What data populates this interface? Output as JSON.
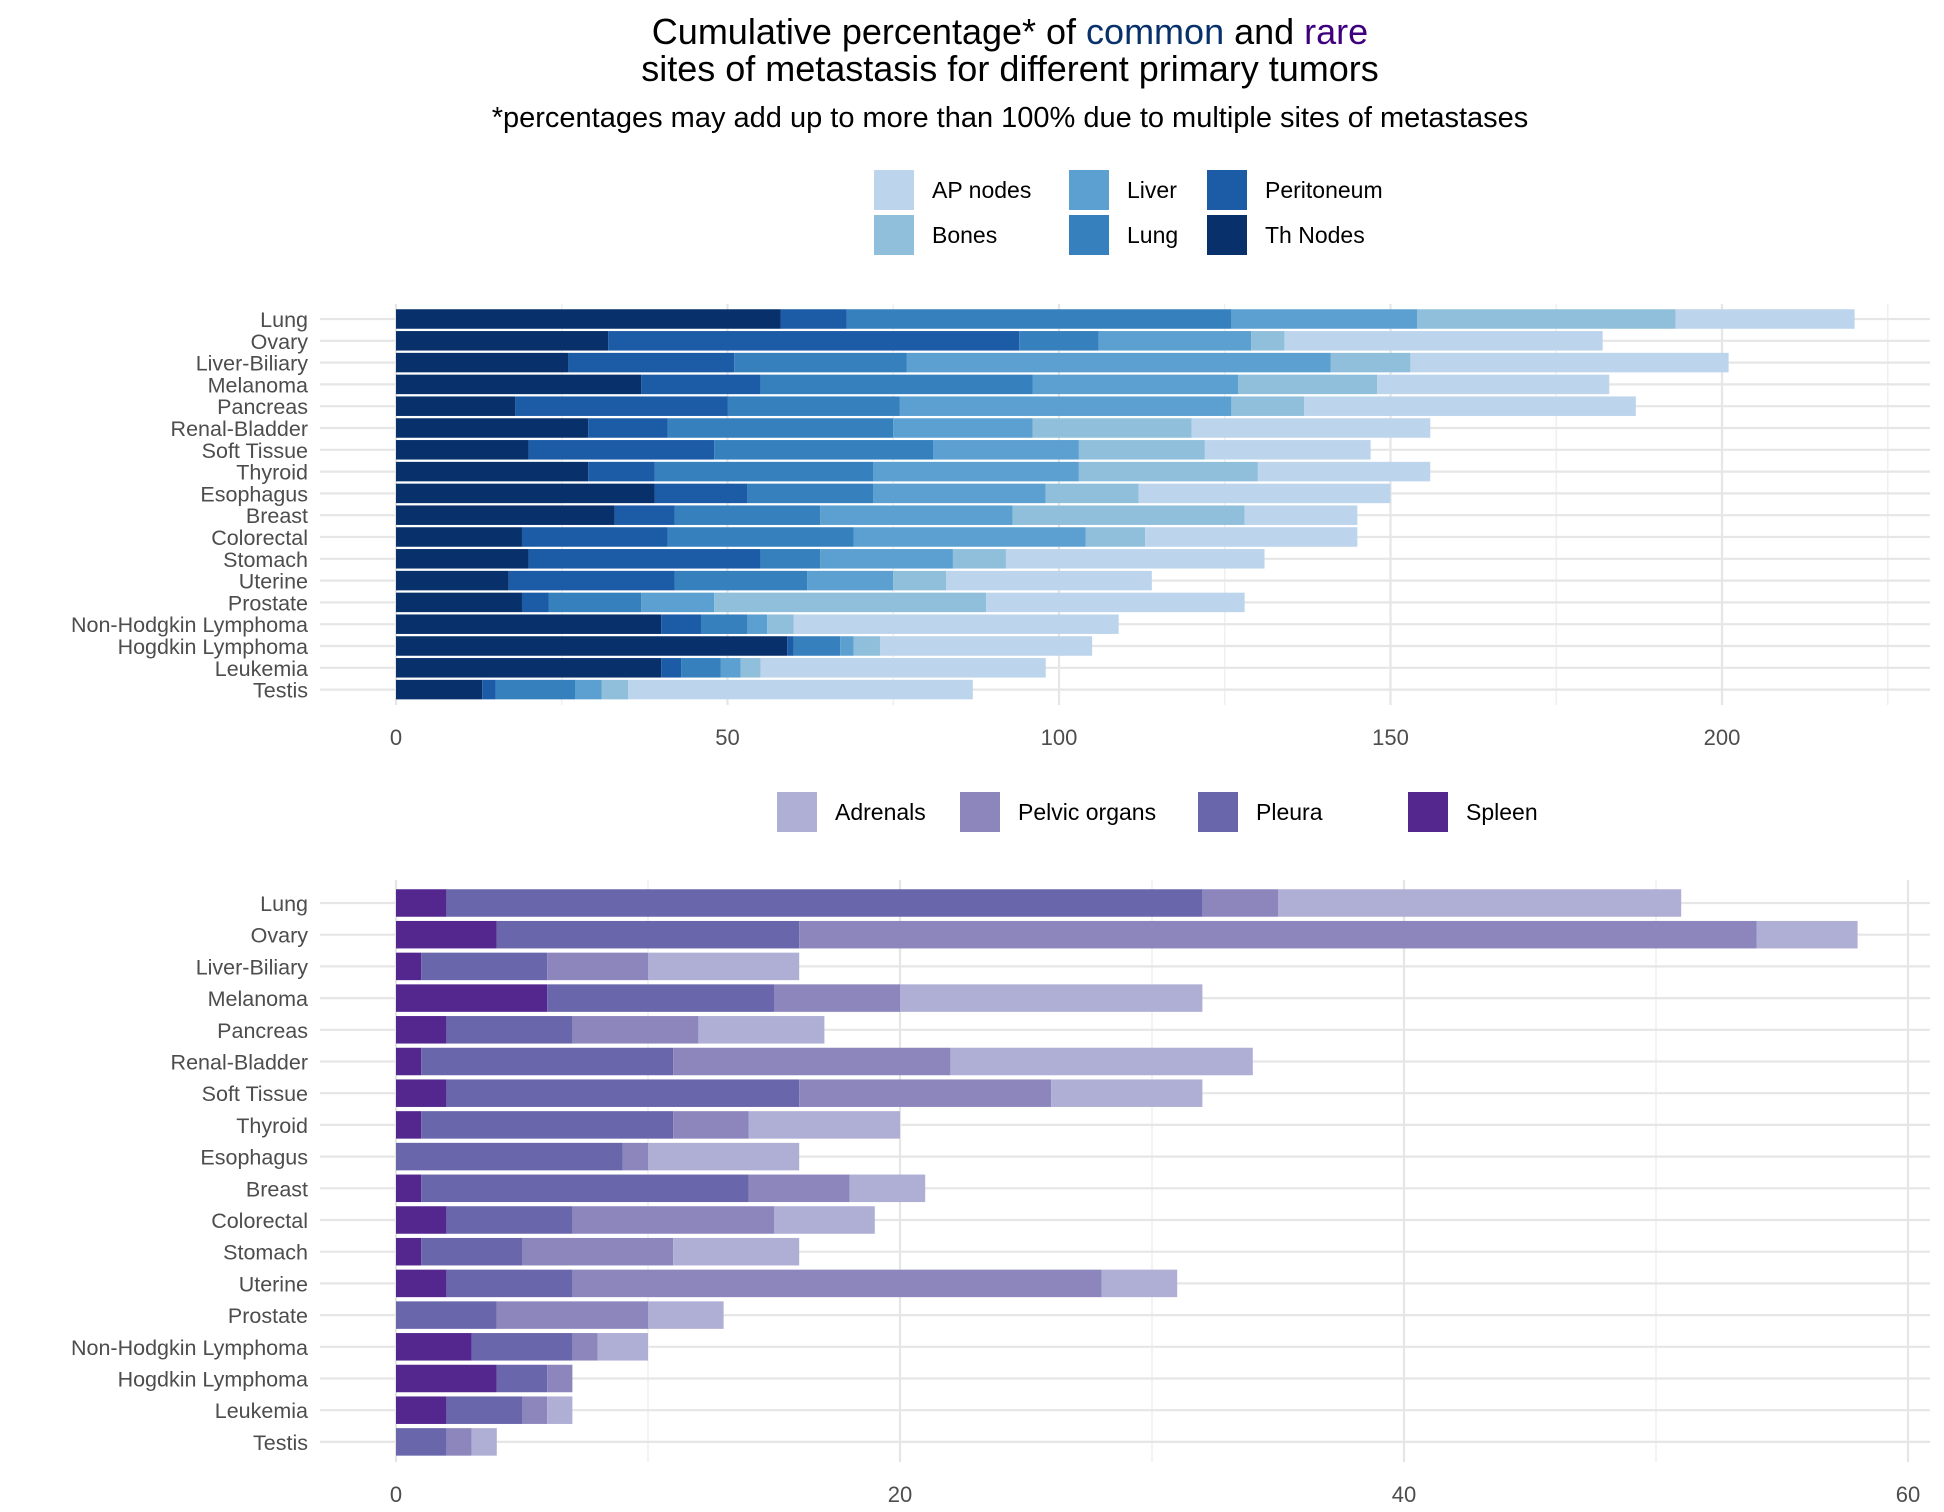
{
  "title": {
    "part1": "Cumulative percentage* of ",
    "common": "common",
    "and": " and ",
    "rare": "rare",
    "line2": "sites of metastasis for different primary tumors",
    "common_color": "#08306b",
    "rare_color": "#3f007d"
  },
  "subtitle": "*percentages may add up to more than 100% due to multiple sites of metastases",
  "chart_data": [
    {
      "type": "bar",
      "orientation": "horizontal",
      "stacked": true,
      "categories": [
        "Lung",
        "Ovary",
        "Liver-Biliary",
        "Melanoma",
        "Pancreas",
        "Renal-Bladder",
        "Soft Tissue",
        "Thyroid",
        "Esophagus",
        "Breast",
        "Colorectal",
        "Stomach",
        "Uterine",
        "Prostate",
        "Non-Hodgkin Lymphoma",
        "Hogdkin Lymphoma",
        "Leukemia",
        "Testis"
      ],
      "xlim": [
        0,
        225
      ],
      "xticks": [
        0,
        50,
        100,
        150,
        200
      ],
      "grid": true,
      "legend_position": "top",
      "series": [
        {
          "name": "Th Nodes",
          "color": "#08306b",
          "values": [
            58,
            32,
            26,
            37,
            18,
            29,
            20,
            29,
            39,
            33,
            19,
            20,
            17,
            19,
            40,
            59,
            40,
            13
          ]
        },
        {
          "name": "Peritoneum",
          "color": "#1c5ba6",
          "values": [
            10,
            62,
            25,
            18,
            32,
            12,
            28,
            10,
            14,
            9,
            22,
            35,
            25,
            4,
            6,
            1,
            3,
            2
          ]
        },
        {
          "name": "Lung",
          "color": "#3580bd",
          "values": [
            58,
            12,
            26,
            41,
            26,
            34,
            33,
            33,
            19,
            22,
            28,
            9,
            20,
            14,
            7,
            7,
            6,
            12
          ]
        },
        {
          "name": "Liver",
          "color": "#5ba0d0",
          "values": [
            28,
            23,
            64,
            31,
            50,
            21,
            22,
            31,
            26,
            29,
            35,
            20,
            13,
            11,
            3,
            2,
            3,
            4
          ]
        },
        {
          "name": "Bones",
          "color": "#90bfdc",
          "values": [
            39,
            5,
            12,
            21,
            11,
            24,
            19,
            27,
            14,
            35,
            9,
            8,
            8,
            41,
            4,
            4,
            3,
            4
          ]
        },
        {
          "name": "AP nodes",
          "color": "#bcd4ec",
          "values": [
            27,
            48,
            48,
            35,
            50,
            36,
            25,
            26,
            38,
            17,
            32,
            39,
            31,
            39,
            49,
            32,
            43,
            52
          ]
        }
      ]
    },
    {
      "type": "bar",
      "orientation": "horizontal",
      "stacked": true,
      "categories": [
        "Lung",
        "Ovary",
        "Liver-Biliary",
        "Melanoma",
        "Pancreas",
        "Renal-Bladder",
        "Soft Tissue",
        "Thyroid",
        "Esophagus",
        "Breast",
        "Colorectal",
        "Stomach",
        "Uterine",
        "Prostate",
        "Non-Hodgkin Lymphoma",
        "Hogdkin Lymphoma",
        "Leukemia",
        "Testis"
      ],
      "xlim": [
        0,
        60
      ],
      "xticks": [
        0,
        20,
        40,
        60
      ],
      "grid": true,
      "legend_position": "top",
      "series": [
        {
          "name": "Spleen",
          "color": "#54278f",
          "values": [
            2,
            4,
            1,
            6,
            2,
            1,
            2,
            1,
            0,
            1,
            2,
            1,
            2,
            0,
            3,
            4,
            2,
            0
          ]
        },
        {
          "name": "Pleura",
          "color": "#6a66ac",
          "values": [
            30,
            12,
            5,
            9,
            5,
            10,
            14,
            10,
            9,
            13,
            5,
            4,
            5,
            4,
            4,
            2,
            3,
            2
          ]
        },
        {
          "name": "Pelvic organs",
          "color": "#8c86bd",
          "values": [
            3,
            38,
            4,
            5,
            5,
            11,
            10,
            3,
            1,
            4,
            8,
            6,
            21,
            6,
            1,
            1,
            1,
            1
          ]
        },
        {
          "name": "Adrenals",
          "color": "#afaed5",
          "values": [
            16,
            4,
            6,
            12,
            5,
            12,
            6,
            6,
            6,
            3,
            4,
            5,
            3,
            3,
            2,
            0,
            1,
            1
          ]
        }
      ]
    }
  ]
}
